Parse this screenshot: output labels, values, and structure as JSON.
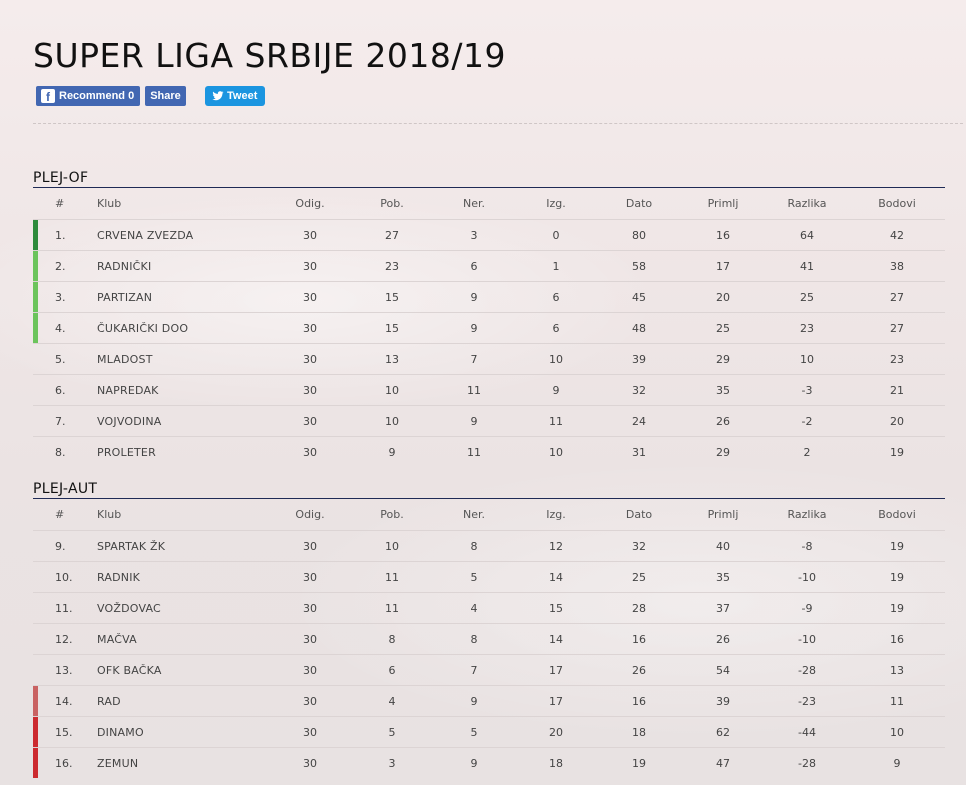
{
  "page": {
    "title": "SUPER LIGA SRBIJE 2018/19"
  },
  "social": {
    "recommend_label": "Recommend 0",
    "share_label": "Share",
    "tweet_label": "Tweet",
    "fb_icon": "facebook-icon",
    "tw_icon": "twitter-icon"
  },
  "colors": {
    "champion": "#2e8b3c",
    "europe": "#6cc45c",
    "relegation_playoff": "#c96262",
    "relegation": "#cc2a2f"
  },
  "columns": [
    "#",
    "Klub",
    "Odig.",
    "Pob.",
    "Ner.",
    "Izg.",
    "Dato",
    "Primlj",
    "Razlika",
    "Bodovi"
  ],
  "sections": [
    {
      "title": "PLEJ-OF",
      "rows": [
        {
          "rank": "1.",
          "club": "CRVENA ZVEZDA",
          "played": "30",
          "won": "27",
          "drawn": "3",
          "lost": "0",
          "gf": "80",
          "ga": "16",
          "diff": "64",
          "pts": "42",
          "marker": "champion"
        },
        {
          "rank": "2.",
          "club": "RADNIČKI",
          "played": "30",
          "won": "23",
          "drawn": "6",
          "lost": "1",
          "gf": "58",
          "ga": "17",
          "diff": "41",
          "pts": "38",
          "marker": "europe"
        },
        {
          "rank": "3.",
          "club": "PARTIZAN",
          "played": "30",
          "won": "15",
          "drawn": "9",
          "lost": "6",
          "gf": "45",
          "ga": "20",
          "diff": "25",
          "pts": "27",
          "marker": "europe"
        },
        {
          "rank": "4.",
          "club": "ČUKARIČKI DOO",
          "played": "30",
          "won": "15",
          "drawn": "9",
          "lost": "6",
          "gf": "48",
          "ga": "25",
          "diff": "23",
          "pts": "27",
          "marker": "europe"
        },
        {
          "rank": "5.",
          "club": "MLADOST",
          "played": "30",
          "won": "13",
          "drawn": "7",
          "lost": "10",
          "gf": "39",
          "ga": "29",
          "diff": "10",
          "pts": "23",
          "marker": ""
        },
        {
          "rank": "6.",
          "club": "NAPREDAK",
          "played": "30",
          "won": "10",
          "drawn": "11",
          "lost": "9",
          "gf": "32",
          "ga": "35",
          "diff": "-3",
          "pts": "21",
          "marker": ""
        },
        {
          "rank": "7.",
          "club": "VOJVODINA",
          "played": "30",
          "won": "10",
          "drawn": "9",
          "lost": "11",
          "gf": "24",
          "ga": "26",
          "diff": "-2",
          "pts": "20",
          "marker": ""
        },
        {
          "rank": "8.",
          "club": "PROLETER",
          "played": "30",
          "won": "9",
          "drawn": "11",
          "lost": "10",
          "gf": "31",
          "ga": "29",
          "diff": "2",
          "pts": "19",
          "marker": ""
        }
      ]
    },
    {
      "title": "PLEJ-AUT",
      "rows": [
        {
          "rank": "9.",
          "club": "SPARTAK ŽK",
          "played": "30",
          "won": "10",
          "drawn": "8",
          "lost": "12",
          "gf": "32",
          "ga": "40",
          "diff": "-8",
          "pts": "19",
          "marker": ""
        },
        {
          "rank": "10.",
          "club": "RADNIK",
          "played": "30",
          "won": "11",
          "drawn": "5",
          "lost": "14",
          "gf": "25",
          "ga": "35",
          "diff": "-10",
          "pts": "19",
          "marker": ""
        },
        {
          "rank": "11.",
          "club": "VOŽDOVAC",
          "played": "30",
          "won": "11",
          "drawn": "4",
          "lost": "15",
          "gf": "28",
          "ga": "37",
          "diff": "-9",
          "pts": "19",
          "marker": ""
        },
        {
          "rank": "12.",
          "club": "MAČVA",
          "played": "30",
          "won": "8",
          "drawn": "8",
          "lost": "14",
          "gf": "16",
          "ga": "26",
          "diff": "-10",
          "pts": "16",
          "marker": ""
        },
        {
          "rank": "13.",
          "club": "OFK BAČKA",
          "played": "30",
          "won": "6",
          "drawn": "7",
          "lost": "17",
          "gf": "26",
          "ga": "54",
          "diff": "-28",
          "pts": "13",
          "marker": ""
        },
        {
          "rank": "14.",
          "club": "RAD",
          "played": "30",
          "won": "4",
          "drawn": "9",
          "lost": "17",
          "gf": "16",
          "ga": "39",
          "diff": "-23",
          "pts": "11",
          "marker": "relegation_playoff"
        },
        {
          "rank": "15.",
          "club": "DINAMO",
          "played": "30",
          "won": "5",
          "drawn": "5",
          "lost": "20",
          "gf": "18",
          "ga": "62",
          "diff": "-44",
          "pts": "10",
          "marker": "relegation"
        },
        {
          "rank": "16.",
          "club": "ZEMUN",
          "played": "30",
          "won": "3",
          "drawn": "9",
          "lost": "18",
          "gf": "19",
          "ga": "47",
          "diff": "-28",
          "pts": "9",
          "marker": "relegation"
        }
      ]
    }
  ]
}
